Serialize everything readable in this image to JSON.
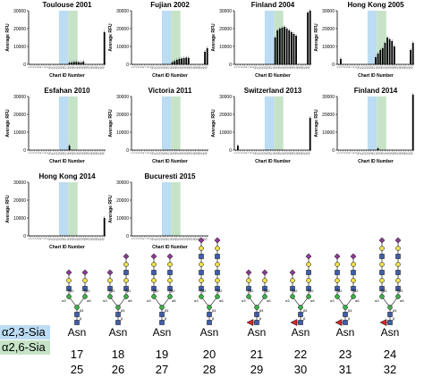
{
  "chart_data": [
    {
      "type": "bar",
      "title": "Toulouse 2001",
      "ylabel": "Average RFU",
      "xlabel": "Chart ID Number",
      "ylim": [
        0,
        30000
      ],
      "highlight_a23": [
        13,
        17
      ],
      "highlight_a26": [
        17,
        21
      ],
      "values": [
        0,
        0,
        0,
        0,
        0,
        0,
        0,
        0,
        0,
        0,
        0,
        0,
        0,
        0,
        0,
        0,
        0,
        900,
        1100,
        1300,
        1400,
        1200,
        1100,
        1500,
        0,
        0,
        0,
        0,
        0,
        0,
        0,
        0,
        18000
      ]
    },
    {
      "type": "bar",
      "title": "Fujian 2002",
      "ylabel": "Average RFU",
      "xlabel": "Chart ID Number",
      "ylim": [
        0,
        30000
      ],
      "highlight_a23": [
        13,
        17
      ],
      "highlight_a26": [
        17,
        21
      ],
      "values": [
        0,
        0,
        0,
        0,
        0,
        0,
        0,
        0,
        0,
        0,
        0,
        0,
        0,
        0,
        0,
        0,
        0,
        1200,
        1800,
        2500,
        3000,
        3300,
        3500,
        3800,
        3600,
        0,
        0,
        0,
        0,
        0,
        0,
        7000,
        9000
      ]
    },
    {
      "type": "bar",
      "title": "Finland 2004",
      "ylabel": "Average RFU",
      "xlabel": "Chart ID Number",
      "ylim": [
        0,
        30000
      ],
      "highlight_a23": [
        13,
        17
      ],
      "highlight_a26": [
        17,
        21
      ],
      "values": [
        0,
        0,
        0,
        0,
        0,
        0,
        0,
        0,
        0,
        0,
        0,
        0,
        0,
        0,
        0,
        0,
        0,
        15000,
        19000,
        20000,
        20500,
        21000,
        20000,
        19000,
        18000,
        17000,
        16000,
        0,
        0,
        0,
        0,
        29000,
        30000
      ]
    },
    {
      "type": "bar",
      "title": "Hong Kong 2005",
      "ylabel": "Average RFU",
      "xlabel": "Chart ID Number",
      "ylim": [
        0,
        30000
      ],
      "highlight_a23": [
        13,
        17
      ],
      "highlight_a26": [
        17,
        21
      ],
      "values": [
        0,
        3000,
        0,
        0,
        0,
        0,
        0,
        0,
        0,
        0,
        0,
        0,
        0,
        0,
        0,
        0,
        4000,
        6000,
        8000,
        9000,
        12000,
        15000,
        14000,
        13000,
        10000,
        0,
        0,
        0,
        0,
        0,
        0,
        8000,
        12000
      ]
    },
    {
      "type": "bar",
      "title": "Esfahan 2010",
      "ylabel": "Average RFU",
      "xlabel": "Chart ID Number",
      "ylim": [
        0,
        30000
      ],
      "highlight_a23": [
        13,
        17
      ],
      "highlight_a26": [
        17,
        21
      ],
      "values": [
        0,
        0,
        0,
        0,
        0,
        0,
        0,
        0,
        0,
        0,
        0,
        0,
        0,
        0,
        0,
        0,
        0,
        2500,
        0,
        0,
        0,
        0,
        0,
        0,
        0,
        0,
        0,
        0,
        0,
        0,
        0,
        0,
        0
      ]
    },
    {
      "type": "bar",
      "title": "Victoria 2011",
      "ylabel": "Average RFU",
      "xlabel": "Chart ID Number",
      "ylim": [
        0,
        30000
      ],
      "highlight_a23": [
        13,
        17
      ],
      "highlight_a26": [
        17,
        21
      ],
      "values": [
        0,
        0,
        0,
        0,
        0,
        0,
        0,
        0,
        0,
        0,
        0,
        0,
        0,
        0,
        0,
        0,
        0,
        0,
        0,
        0,
        0,
        0,
        0,
        0,
        0,
        0,
        0,
        0,
        0,
        0,
        0,
        0,
        0
      ]
    },
    {
      "type": "bar",
      "title": "Switzerland 2013",
      "ylabel": "Average RFU",
      "xlabel": "Chart ID Number",
      "ylim": [
        0,
        30000
      ],
      "highlight_a23": [
        13,
        17
      ],
      "highlight_a26": [
        17,
        21
      ],
      "values": [
        0,
        2500,
        0,
        0,
        0,
        0,
        0,
        0,
        0,
        0,
        0,
        0,
        0,
        0,
        0,
        0,
        0,
        0,
        0,
        0,
        0,
        0,
        0,
        0,
        0,
        0,
        0,
        0,
        0,
        0,
        0,
        0,
        18000
      ]
    },
    {
      "type": "bar",
      "title": "Finland 2014",
      "ylabel": "Average RFU",
      "xlabel": "Chart ID Number",
      "ylim": [
        0,
        30000
      ],
      "highlight_a23": [
        13,
        17
      ],
      "highlight_a26": [
        17,
        21
      ],
      "values": [
        0,
        0,
        0,
        0,
        0,
        0,
        0,
        0,
        0,
        0,
        0,
        0,
        0,
        0,
        0,
        0,
        0,
        1000,
        0,
        0,
        0,
        0,
        0,
        0,
        0,
        0,
        0,
        0,
        0,
        0,
        0,
        0,
        31000
      ]
    },
    {
      "type": "bar",
      "title": "Hong Kong 2014",
      "ylabel": "Average RFU",
      "xlabel": "Chart ID Number",
      "ylim": [
        0,
        30000
      ],
      "highlight_a23": [
        13,
        17
      ],
      "highlight_a26": [
        17,
        21
      ],
      "values": [
        0,
        0,
        0,
        0,
        0,
        0,
        0,
        0,
        0,
        0,
        0,
        0,
        0,
        0,
        0,
        0,
        0,
        0,
        0,
        0,
        0,
        0,
        0,
        0,
        0,
        0,
        0,
        0,
        0,
        0,
        0,
        0,
        10000
      ]
    },
    {
      "type": "bar",
      "title": "Bucuresti 2015",
      "ylabel": "Average RFU",
      "xlabel": "Chart ID Number",
      "ylim": [
        0,
        30000
      ],
      "highlight_a23": [
        13,
        17
      ],
      "highlight_a26": [
        17,
        21
      ],
      "values": [
        0,
        0,
        0,
        0,
        0,
        0,
        0,
        0,
        0,
        0,
        0,
        0,
        0,
        0,
        0,
        0,
        0,
        0,
        0,
        0,
        0,
        0,
        0,
        0,
        0,
        0,
        0,
        0,
        0,
        0,
        0,
        0,
        0
      ]
    }
  ],
  "yticks": [
    "0",
    "10000",
    "20000",
    "30000"
  ],
  "xticks": [
    "1",
    "2",
    "3",
    "4",
    "5",
    "6",
    "7",
    "8",
    "9",
    "10",
    "11",
    "12",
    "13",
    "14",
    "15",
    "16",
    "17",
    "18",
    "19",
    "20",
    "21",
    "22",
    "23",
    "24",
    "25",
    "26",
    "27",
    "28",
    "29",
    "30",
    "31",
    "32",
    "33"
  ],
  "colors": {
    "a23_band": "#bcdcf3",
    "a26_band": "#c6e3c8",
    "bar": "#000000",
    "sia": "#8a3c8f",
    "gal": "#f0e14a",
    "man": "#3cb04a",
    "glcnac": "#3f5fae",
    "fuc": "#d7262c"
  },
  "glycan_legend": {
    "asn_label": "Asn",
    "linkage_labels": [
      "β4",
      "β2",
      "α3",
      "α6",
      "β4",
      "β"
    ],
    "row_a23_label": "α2,3-Sia",
    "row_a26_label": "α2,6-Sia",
    "a23_ids": [
      "17",
      "18",
      "19",
      "20",
      "21",
      "22",
      "23",
      "24"
    ],
    "a26_ids": [
      "25",
      "26",
      "27",
      "28",
      "29",
      "30",
      "31",
      "32"
    ]
  }
}
